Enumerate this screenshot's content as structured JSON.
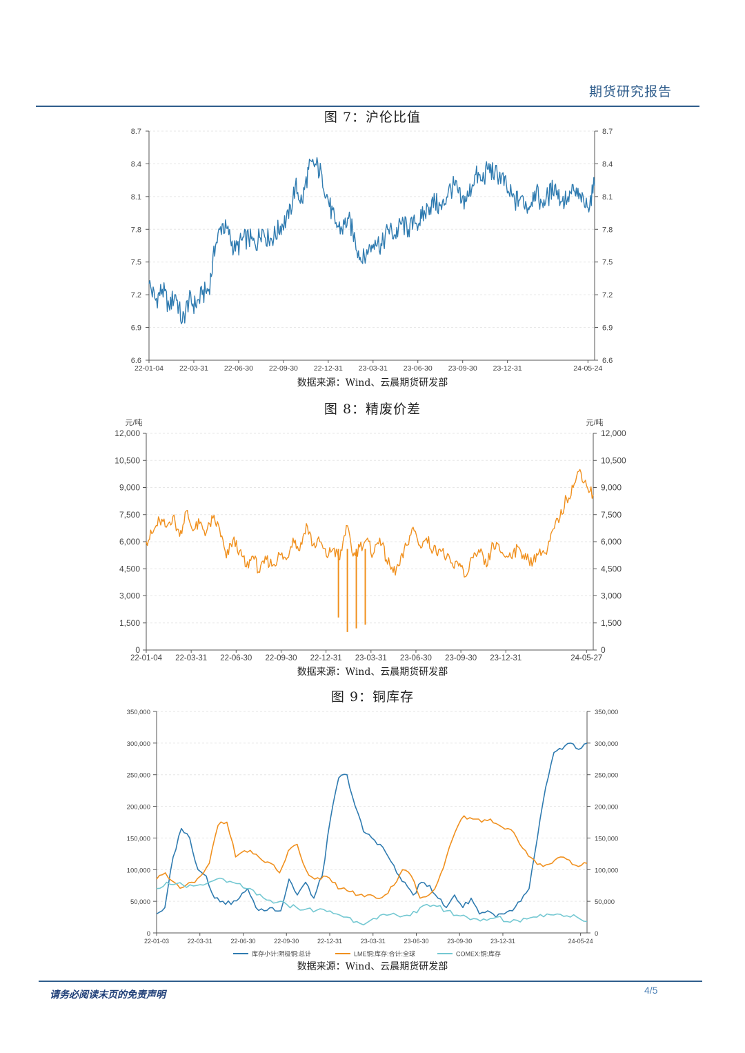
{
  "header": {
    "title": "期货研究报告"
  },
  "footer": {
    "disclaimer": "请务必阅读末页的免责声明",
    "page": "4/5"
  },
  "figures": [
    {
      "title": "图 7：沪伦比值",
      "source": "数据来源：Wind、云晨期货研发部",
      "chart_data": {
        "type": "line",
        "unit": "",
        "yticks": [
          "6.6",
          "6.9",
          "7.2",
          "7.5",
          "7.8",
          "8.1",
          "8.4",
          "8.7"
        ],
        "ylim": [
          6.6,
          8.7
        ],
        "grid": true,
        "xticks": [
          "22-01-04",
          "22-03-31",
          "22-06-30",
          "22-09-30",
          "22-12-31",
          "23-03-31",
          "23-06-30",
          "23-09-30",
          "23-12-31",
          "24-05-24"
        ],
        "series": [
          {
            "name": "",
            "color": "#2f7bb0",
            "values": [
              7.3,
              7.15,
              7.25,
              7.1,
              7.2,
              6.95,
              7.15,
              7.1,
              7.2,
              7.25,
              7.65,
              7.85,
              7.75,
              7.6,
              7.7,
              7.72,
              7.65,
              7.8,
              7.7,
              7.75,
              7.85,
              7.9,
              8.2,
              8.05,
              8.35,
              8.4,
              8.3,
              8.05,
              7.85,
              7.8,
              7.9,
              7.7,
              7.5,
              7.6,
              7.7,
              7.65,
              7.8,
              7.75,
              7.85,
              7.8,
              7.85,
              7.9,
              8.0,
              8.05,
              7.98,
              8.15,
              8.2,
              8.05,
              8.1,
              8.3,
              8.25,
              8.35,
              8.32,
              8.28,
              8.15,
              8.05,
              8.1,
              8.0,
              8.15,
              8.05,
              8.1,
              8.2,
              8.05,
              8.1,
              8.15,
              8.05,
              8.0,
              8.2
            ],
            "x_dates": [
              "2022-01-04",
              "2022-01-18",
              "2022-02-02",
              "2022-02-16",
              "2022-03-02",
              "2022-03-16",
              "2022-03-31",
              "2022-04-14",
              "2022-04-28",
              "2022-05-12",
              "2022-05-26",
              "2022-06-09",
              "2022-06-23",
              "2022-07-07",
              "2022-07-21",
              "2022-08-04",
              "2022-08-18",
              "2022-09-01",
              "2022-09-15",
              "2022-09-30",
              "2022-10-14",
              "2022-10-28",
              "2022-11-11",
              "2022-11-25",
              "2022-12-09",
              "2022-12-23",
              "2023-01-06",
              "2023-01-20",
              "2023-02-03",
              "2023-02-17",
              "2023-03-03",
              "2023-03-17",
              "2023-03-31",
              "2023-04-14",
              "2023-04-28",
              "2023-05-12",
              "2023-05-26",
              "2023-06-09",
              "2023-06-23",
              "2023-06-30",
              "2023-07-14",
              "2023-07-28",
              "2023-08-11",
              "2023-08-25",
              "2023-09-08",
              "2023-09-22",
              "2023-09-30",
              "2023-10-14",
              "2023-10-28",
              "2023-11-11",
              "2023-11-25",
              "2023-12-09",
              "2023-12-23",
              "2023-12-31",
              "2024-01-14",
              "2024-01-28",
              "2024-02-11",
              "2024-02-25",
              "2024-03-10",
              "2024-03-24",
              "2024-04-07",
              "2024-04-21",
              "2024-05-05",
              "2024-05-10",
              "2024-05-14",
              "2024-05-18",
              "2024-05-21",
              "2024-05-24"
            ]
          }
        ]
      }
    },
    {
      "title": "图 8：精废价差",
      "source": "数据来源：Wind、云晨期货研发部",
      "chart_data": {
        "type": "line",
        "unit": "元/吨",
        "yticks": [
          "0",
          "1,500",
          "3,000",
          "4,500",
          "6,000",
          "7,500",
          "9,000",
          "10,500",
          "12,000"
        ],
        "ylim": [
          0,
          12000
        ],
        "grid": true,
        "xticks": [
          "22-01-04",
          "22-03-31",
          "22-06-30",
          "22-09-30",
          "22-12-31",
          "23-03-31",
          "23-06-30",
          "23-09-30",
          "23-12-31",
          "24-05-27"
        ],
        "series": [
          {
            "name": "",
            "color": "#f0901e",
            "values": [
              6000,
              6500,
              7200,
              6800,
              7400,
              6300,
              7700,
              6600,
              7000,
              6500,
              7300,
              6700,
              5100,
              6100,
              5500,
              4600,
              5200,
              4300,
              5000,
              4700,
              5300,
              5000,
              6200,
              5500,
              7000,
              5800,
              6000,
              5200,
              5600,
              5000,
              6900,
              5200,
              5700,
              6100,
              5300,
              6200,
              5000,
              4300,
              4700,
              5800,
              6800,
              5800,
              6200,
              5500,
              5600,
              5100,
              4600,
              4800,
              4100,
              5100,
              5400,
              4600,
              5900,
              5500,
              5200,
              5400,
              5600,
              5000,
              4900,
              5600,
              5300,
              6700,
              7300,
              8400,
              9000,
              10000,
              9100,
              8600
            ],
            "spikes": [
              [
                2800,
                1800
              ],
              [
                2950,
                1000
              ],
              [
                3050,
                1200
              ],
              [
                3150,
                1400
              ]
            ],
            "x_dates": [
              "2022-01-04",
              "2022-01-18",
              "2022-02-02",
              "2022-02-16",
              "2022-03-02",
              "2022-03-16",
              "2022-03-31",
              "2022-04-14",
              "2022-04-28",
              "2022-05-12",
              "2022-05-26",
              "2022-06-09",
              "2022-06-23",
              "2022-07-07",
              "2022-07-21",
              "2022-08-04",
              "2022-08-18",
              "2022-09-01",
              "2022-09-15",
              "2022-09-30",
              "2022-10-14",
              "2022-10-28",
              "2022-11-11",
              "2022-11-25",
              "2022-12-09",
              "2022-12-23",
              "2023-01-06",
              "2023-01-20",
              "2023-02-03",
              "2023-02-17",
              "2023-03-03",
              "2023-03-17",
              "2023-03-31",
              "2023-04-14",
              "2023-04-28",
              "2023-05-12",
              "2023-05-26",
              "2023-06-09",
              "2023-06-23",
              "2023-06-30",
              "2023-07-14",
              "2023-07-28",
              "2023-08-11",
              "2023-08-25",
              "2023-09-08",
              "2023-09-22",
              "2023-09-30",
              "2023-10-14",
              "2023-10-28",
              "2023-11-11",
              "2023-11-25",
              "2023-12-09",
              "2023-12-23",
              "2023-12-31",
              "2024-01-14",
              "2024-01-28",
              "2024-02-11",
              "2024-02-25",
              "2024-03-10",
              "2024-03-24",
              "2024-04-07",
              "2024-04-21",
              "2024-05-01",
              "2024-05-08",
              "2024-05-14",
              "2024-05-20",
              "2024-05-24",
              "2024-05-27"
            ]
          }
        ]
      }
    },
    {
      "title": "图 9：铜库存",
      "source": "数据来源：Wind、云晨期货研发部",
      "chart_data": {
        "type": "line",
        "unit": "",
        "yticks": [
          "0",
          "50,000",
          "100,000",
          "150,000",
          "200,000",
          "250,000",
          "300,000",
          "350,000"
        ],
        "ylim": [
          0,
          350000
        ],
        "grid": true,
        "legend_position": "bottom",
        "xticks": [
          "22-01-03",
          "22-03-31",
          "22-06-30",
          "22-09-30",
          "22-12-31",
          "23-03-31",
          "23-06-30",
          "23-09-30",
          "23-12-31",
          "24-05-24"
        ],
        "series": [
          {
            "name": "库存小计:阴极铜:总计",
            "color": "#2f7bb0",
            "values": [
              30000,
              40000,
              120000,
              165000,
              150000,
              100000,
              90000,
              55000,
              50000,
              45000,
              55000,
              70000,
              40000,
              35000,
              40000,
              35000,
              85000,
              60000,
              80000,
              55000,
              90000,
              180000,
              245000,
              250000,
              200000,
              160000,
              150000,
              140000,
              120000,
              95000,
              80000,
              60000,
              80000,
              75000,
              55000,
              40000,
              60000,
              40000,
              55000,
              30000,
              35000,
              25000,
              30000,
              35000,
              50000,
              70000,
              150000,
              230000,
              285000,
              290000,
              300000,
              290000,
              300000
            ]
          },
          {
            "name": "LME铜:库存:合计:全球",
            "color": "#f0901e",
            "values": [
              85000,
              95000,
              80000,
              72000,
              80000,
              90000,
              110000,
              170000,
              175000,
              120000,
              130000,
              125000,
              115000,
              110000,
              95000,
              130000,
              140000,
              100000,
              85000,
              90000,
              80000,
              70000,
              65000,
              60000,
              60000,
              55000,
              60000,
              75000,
              100000,
              90000,
              55000,
              60000,
              80000,
              120000,
              160000,
              185000,
              180000,
              175000,
              180000,
              170000,
              165000,
              150000,
              130000,
              115000,
              105000,
              110000,
              120000,
              115000,
              105000,
              110000
            ]
          },
          {
            "name": "COMEX:铜:库存",
            "color": "#74c8d2",
            "values": [
              70000,
              80000,
              78000,
              72000,
              75000,
              78000,
              85000,
              80000,
              78000,
              70000,
              60000,
              52000,
              48000,
              45000,
              40000,
              38000,
              36000,
              34000,
              30000,
              25000,
              18000,
              16000,
              22000,
              28000,
              28000,
              28000,
              32000,
              45000,
              42000,
              35000,
              28000,
              25000,
              22000,
              20000,
              25000,
              18000,
              20000,
              22000,
              25000,
              30000,
              30000,
              27000,
              25000,
              18000
            ]
          }
        ]
      }
    }
  ]
}
